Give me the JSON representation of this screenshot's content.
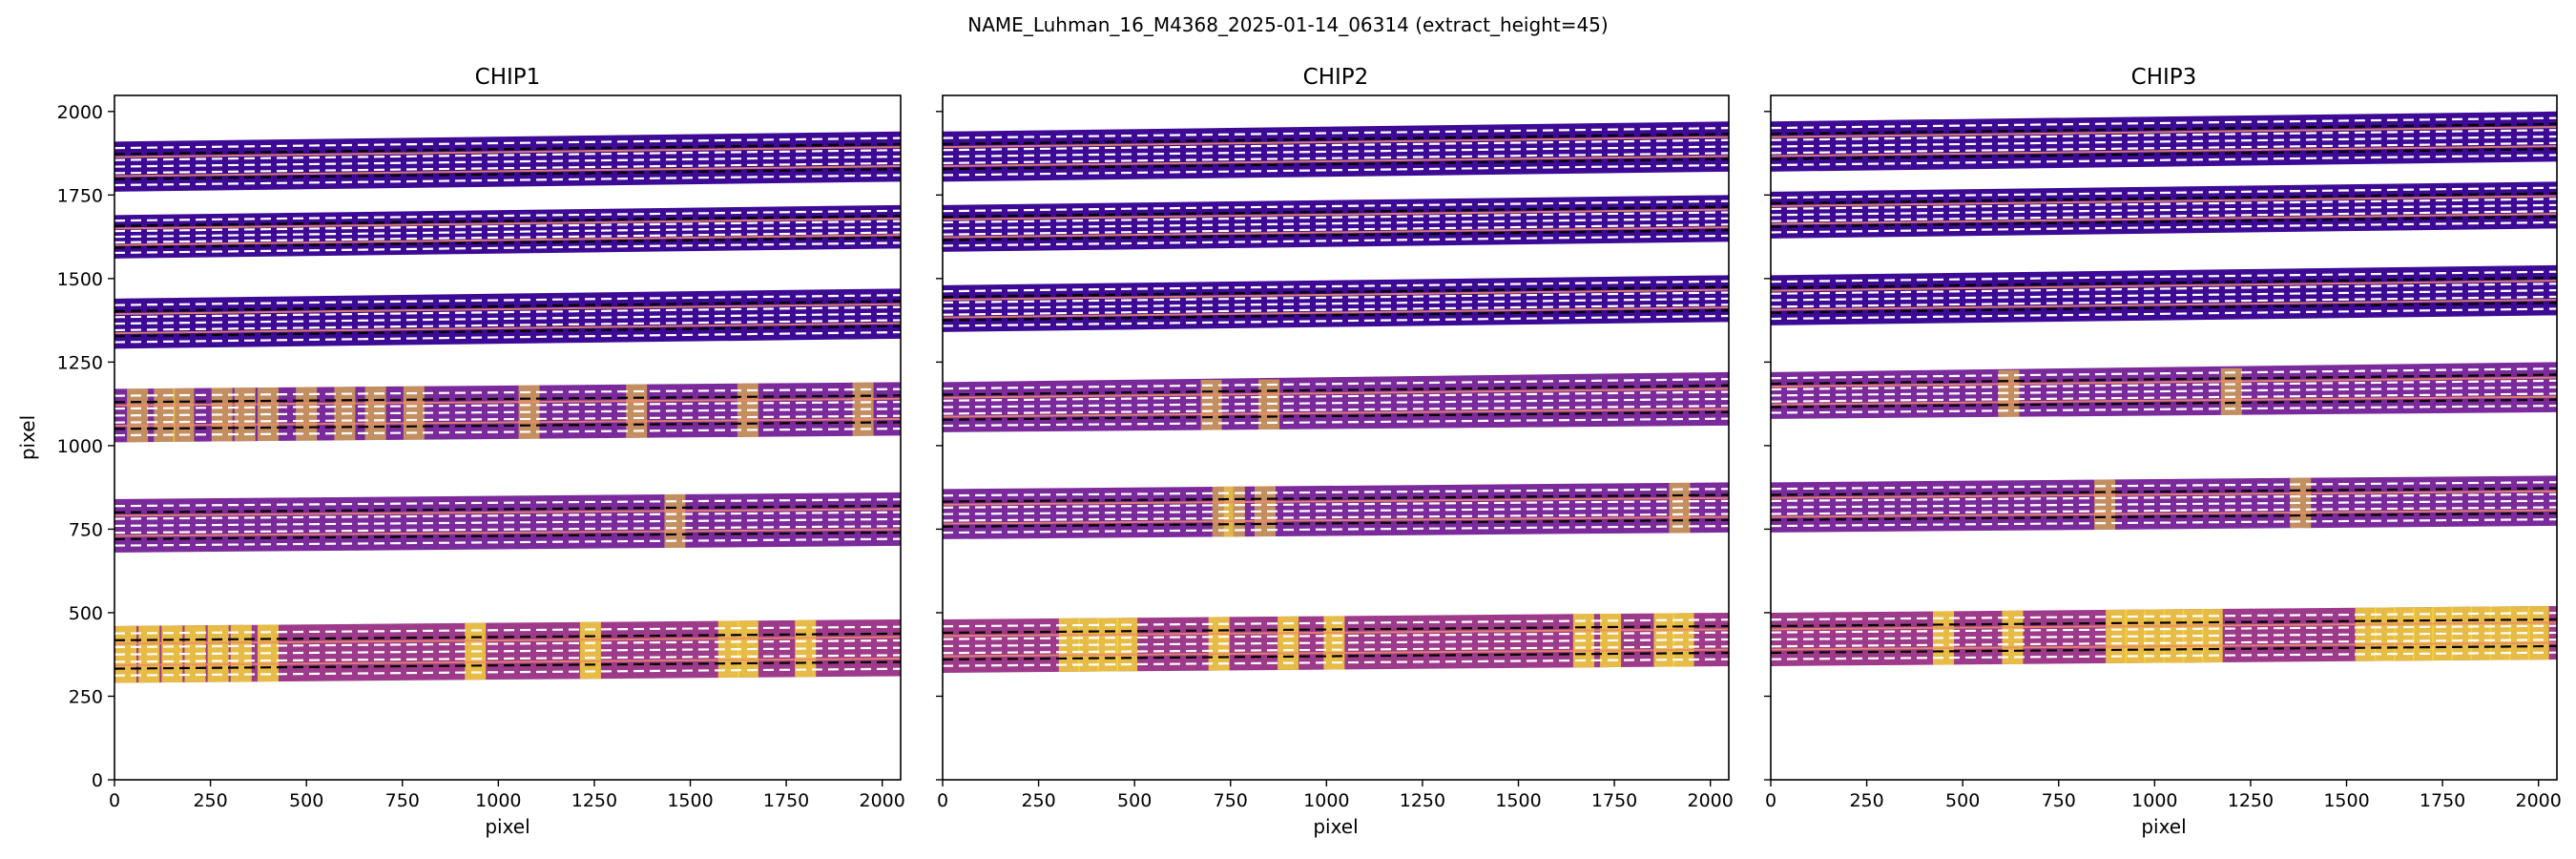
{
  "figure": {
    "suptitle": "NAME_Luhman_16_M4368_2025-01-14_06314  (extract_height=45)"
  },
  "colors": {
    "band_dark": "#3d0a95",
    "band_mid": "#7a2a9a",
    "band_warm": "#9d3a8a",
    "hot": "#f3d23a",
    "trace_line": "#ffffff",
    "center_line": "#000000",
    "order_line": "#f08a6b"
  },
  "chart_data": [
    {
      "type": "heatmap",
      "title": "CHIP1",
      "xlabel": "pixel",
      "ylabel": "pixel",
      "xlim": [
        0,
        2048
      ],
      "ylim": [
        0,
        2048
      ],
      "xticks": [
        0,
        250,
        500,
        750,
        1000,
        1250,
        1500,
        1750,
        2000
      ],
      "yticks": [
        0,
        250,
        500,
        750,
        1000,
        1250,
        1500,
        1750,
        2000
      ],
      "orders": [
        {
          "bottom_left": 1760,
          "top_left": 1910,
          "bottom_right": 1790,
          "top_right": 1940,
          "intensity": "low",
          "hot_columns": []
        },
        {
          "bottom_left": 1560,
          "top_left": 1690,
          "bottom_right": 1590,
          "top_right": 1720,
          "intensity": "low",
          "hot_columns": []
        },
        {
          "bottom_left": 1290,
          "top_left": 1440,
          "bottom_right": 1320,
          "top_right": 1470,
          "intensity": "low",
          "hot_columns": []
        },
        {
          "bottom_left": 1010,
          "top_left": 1170,
          "bottom_right": 1030,
          "top_right": 1190,
          "intensity": "mid",
          "hot_columns": [
            60,
            130,
            180,
            280,
            340,
            400,
            500,
            600,
            680,
            780,
            1080,
            1360,
            1650,
            1950
          ]
        },
        {
          "bottom_left": 680,
          "top_left": 840,
          "bottom_right": 700,
          "top_right": 860,
          "intensity": "mid",
          "hot_columns": [
            1460
          ]
        },
        {
          "bottom_left": 290,
          "top_left": 460,
          "bottom_right": 310,
          "top_right": 480,
          "intensity": "high",
          "hot_columns": [
            30,
            90,
            150,
            210,
            270,
            330,
            400,
            940,
            1240,
            1600,
            1650,
            1800
          ]
        }
      ]
    },
    {
      "type": "heatmap",
      "title": "CHIP2",
      "xlabel": "pixel",
      "ylabel": "",
      "xlim": [
        0,
        2048
      ],
      "ylim": [
        0,
        2048
      ],
      "xticks": [
        0,
        250,
        500,
        750,
        1000,
        1250,
        1500,
        1750,
        2000
      ],
      "yticks": [],
      "orders": [
        {
          "bottom_left": 1790,
          "top_left": 1940,
          "bottom_right": 1820,
          "top_right": 1970,
          "intensity": "low",
          "hot_columns": []
        },
        {
          "bottom_left": 1580,
          "top_left": 1720,
          "bottom_right": 1610,
          "top_right": 1750,
          "intensity": "low",
          "hot_columns": []
        },
        {
          "bottom_left": 1340,
          "top_left": 1480,
          "bottom_right": 1370,
          "top_right": 1510,
          "intensity": "low",
          "hot_columns": []
        },
        {
          "bottom_left": 1040,
          "top_left": 1190,
          "bottom_right": 1060,
          "top_right": 1220,
          "intensity": "mid",
          "hot_columns": [
            700,
            850
          ]
        },
        {
          "bottom_left": 720,
          "top_left": 870,
          "bottom_right": 740,
          "top_right": 890,
          "intensity": "mid",
          "hot_columns": [
            730,
            760,
            840,
            1920
          ]
        },
        {
          "bottom_left": 320,
          "top_left": 480,
          "bottom_right": 340,
          "top_right": 500,
          "intensity": "high",
          "hot_columns": [
            330,
            380,
            430,
            480,
            720,
            900,
            1020,
            1670,
            1740,
            1880,
            1930
          ]
        }
      ]
    },
    {
      "type": "heatmap",
      "title": "CHIP3",
      "xlabel": "pixel",
      "ylabel": "",
      "xlim": [
        0,
        2048
      ],
      "ylim": [
        0,
        2048
      ],
      "xticks": [
        0,
        250,
        500,
        750,
        1000,
        1250,
        1500,
        1750,
        2000
      ],
      "yticks": [],
      "orders": [
        {
          "bottom_left": 1820,
          "top_left": 1970,
          "bottom_right": 1850,
          "top_right": 2000,
          "intensity": "low",
          "hot_columns": []
        },
        {
          "bottom_left": 1620,
          "top_left": 1760,
          "bottom_right": 1650,
          "top_right": 1790,
          "intensity": "low",
          "hot_columns": []
        },
        {
          "bottom_left": 1360,
          "top_left": 1510,
          "bottom_right": 1390,
          "top_right": 1540,
          "intensity": "low",
          "hot_columns": []
        },
        {
          "bottom_left": 1080,
          "top_left": 1220,
          "bottom_right": 1100,
          "top_right": 1250,
          "intensity": "mid",
          "hot_columns": [
            620,
            1200
          ]
        },
        {
          "bottom_left": 740,
          "top_left": 890,
          "bottom_right": 760,
          "top_right": 910,
          "intensity": "mid",
          "hot_columns": [
            870,
            1380
          ]
        },
        {
          "bottom_left": 340,
          "top_left": 500,
          "bottom_right": 360,
          "top_right": 520,
          "intensity": "high",
          "hot_columns": [
            450,
            630,
            900,
            950,
            1000,
            1050,
            1100,
            1150,
            1550,
            1600,
            1650,
            1700,
            1750,
            1800,
            1850,
            1900,
            1950,
            2000
          ]
        }
      ]
    }
  ]
}
